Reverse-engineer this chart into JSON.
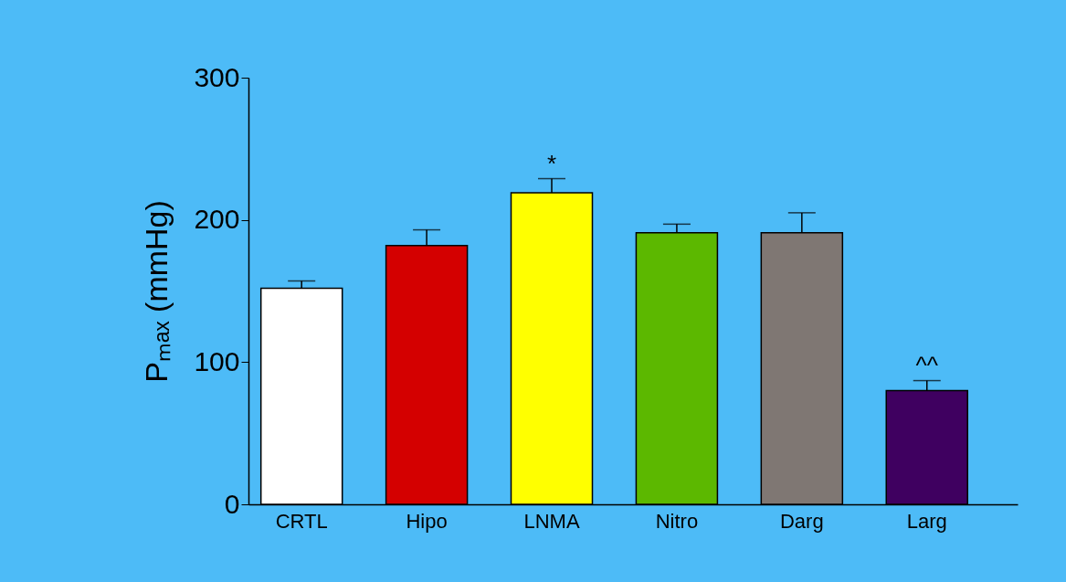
{
  "chart_data": {
    "type": "bar",
    "ylabel": "Pₘₐₓ (mmHg)",
    "categories": [
      "CRTL",
      "Hipo",
      "LNMA",
      "Nitro",
      "Darg",
      "Larg"
    ],
    "values": [
      152,
      182,
      219,
      191,
      191,
      80
    ],
    "colors": [
      "#ffffff",
      "#d40000",
      "#ffff00",
      "#5cb800",
      "#7f7773",
      "#3f0060"
    ],
    "errors": [
      [
        152,
        157
      ],
      [
        182,
        193
      ],
      [
        219,
        229
      ],
      [
        191,
        197
      ],
      [
        191,
        205
      ],
      [
        80,
        87
      ]
    ],
    "ylim": [
      0,
      300
    ],
    "yticks": [
      0,
      100,
      200,
      300
    ],
    "grid": false,
    "annotations": [
      {
        "text": "*",
        "x": "LNMA",
        "y": 229
      },
      {
        "text": "^^",
        "x": "Larg",
        "y": 87
      }
    ]
  }
}
